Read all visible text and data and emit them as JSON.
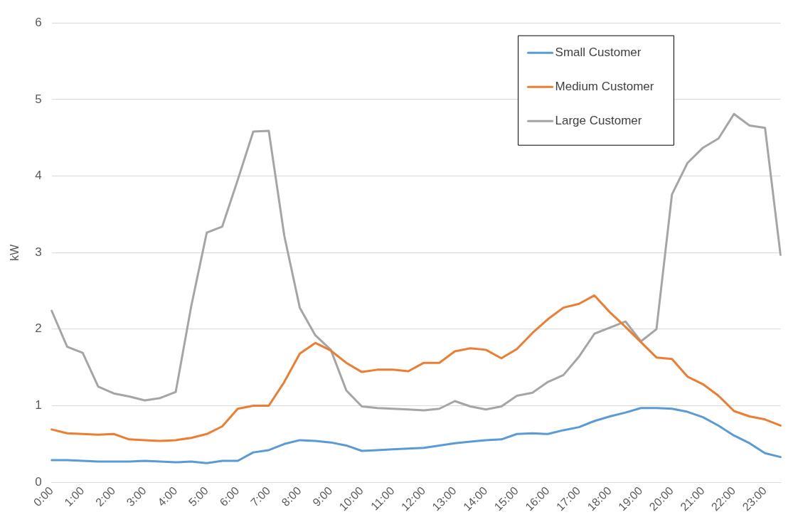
{
  "chart_data": {
    "type": "line",
    "ylabel": "kW",
    "categories": [
      "0:00",
      null,
      "1:00",
      null,
      "2:00",
      null,
      "3:00",
      null,
      "4:00",
      null,
      "5:00",
      null,
      "6:00",
      null,
      "7:00",
      null,
      "8:00",
      null,
      "9:00",
      null,
      "10:00",
      null,
      "11:00",
      null,
      "12:00",
      null,
      "13:00",
      null,
      "14:00",
      null,
      "15:00",
      null,
      "16:00",
      null,
      "17:00",
      null,
      "18:00",
      null,
      "19:00",
      null,
      "20:00",
      null,
      "21:00",
      null,
      "22:00",
      null,
      "23:00",
      null
    ],
    "series": [
      {
        "name": "Small Customer",
        "color": "#5b9bd5",
        "values": [
          0.29,
          0.29,
          0.28,
          0.27,
          0.27,
          0.27,
          0.28,
          0.27,
          0.26,
          0.27,
          0.25,
          0.28,
          0.28,
          0.39,
          0.42,
          0.5,
          0.55,
          0.54,
          0.52,
          0.48,
          0.41,
          0.42,
          0.43,
          0.44,
          0.45,
          0.48,
          0.51,
          0.53,
          0.55,
          0.56,
          0.63,
          0.64,
          0.63,
          0.68,
          0.72,
          0.8,
          0.86,
          0.91,
          0.97,
          0.97,
          0.96,
          0.92,
          0.85,
          0.74,
          0.61,
          0.51,
          0.38,
          0.33
        ]
      },
      {
        "name": "Medium Customer",
        "color": "#ed7d31",
        "values": [
          0.69,
          0.64,
          0.63,
          0.62,
          0.63,
          0.56,
          0.55,
          0.54,
          0.55,
          0.58,
          0.63,
          0.73,
          0.96,
          1.0,
          1.0,
          1.31,
          1.68,
          1.82,
          1.72,
          1.56,
          1.44,
          1.47,
          1.47,
          1.45,
          1.56,
          1.56,
          1.71,
          1.75,
          1.73,
          1.62,
          1.74,
          1.95,
          2.13,
          2.28,
          2.33,
          2.44,
          2.22,
          2.03,
          1.83,
          1.63,
          1.61,
          1.38,
          1.28,
          1.13,
          0.93,
          0.86,
          0.82,
          0.74
        ]
      },
      {
        "name": "Large Customer",
        "color": "#a5a5a5",
        "values": [
          2.24,
          1.77,
          1.69,
          1.25,
          1.16,
          1.12,
          1.07,
          1.1,
          1.18,
          2.3,
          3.26,
          3.34,
          3.95,
          4.58,
          4.59,
          3.22,
          2.28,
          1.92,
          1.73,
          1.2,
          0.99,
          0.97,
          0.96,
          0.95,
          0.94,
          0.96,
          1.06,
          0.99,
          0.95,
          0.99,
          1.13,
          1.17,
          1.31,
          1.4,
          1.64,
          1.94,
          2.02,
          2.1,
          1.84,
          2.0,
          3.76,
          4.17,
          4.37,
          4.49,
          4.81,
          4.66,
          4.63,
          2.97
        ]
      }
    ],
    "ylim": [
      0,
      6
    ],
    "yticks": [
      0,
      1,
      2,
      3,
      4,
      5,
      6
    ],
    "grid": "y",
    "legend": "top right",
    "marker": "none",
    "line_style": "solid"
  }
}
